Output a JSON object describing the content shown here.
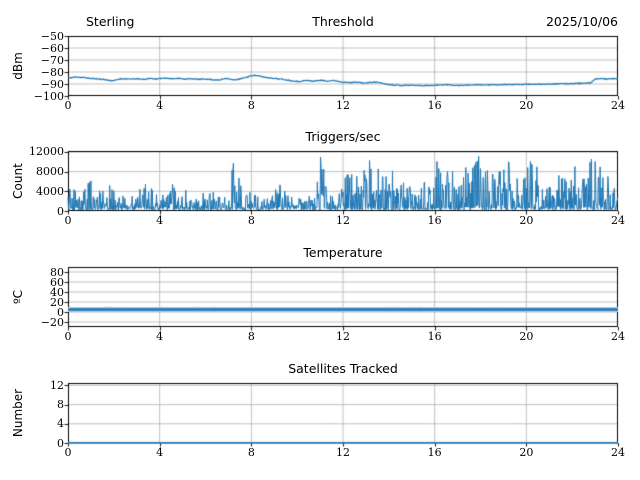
{
  "figure": {
    "colors": {
      "line": "#1f77b4",
      "band": "#a9c9e4",
      "grid": "#b0b0b0",
      "frame": "#000000",
      "background": "#ffffff",
      "text": "#000000"
    },
    "x_axis": {
      "min": 0,
      "max": 24,
      "tick_values": [
        0,
        4,
        8,
        12,
        16,
        20,
        24
      ],
      "tick_labels": [
        "0",
        "4",
        "8",
        "12",
        "16",
        "20",
        "24"
      ]
    }
  },
  "chart_data": [
    {
      "type": "line",
      "title": "Threshold",
      "title_left": "Sterling",
      "title_right": "2025/10/06",
      "ylabel": "dBm",
      "ylim": [
        -100,
        -50
      ],
      "ytick_values": [
        -50,
        -60,
        -70,
        -80,
        -90,
        -100
      ],
      "ytick_labels": [
        "−50",
        "−60",
        "−70",
        "−80",
        "−90",
        "−100"
      ],
      "x": [
        0,
        0.3,
        0.7,
        1.0,
        1.3,
        1.6,
        1.9,
        2.1,
        2.3,
        2.7,
        3.0,
        3.3,
        3.6,
        3.9,
        4.2,
        4.5,
        4.8,
        5.1,
        5.4,
        5.7,
        6.0,
        6.3,
        6.6,
        6.9,
        7.2,
        7.5,
        7.8,
        8.1,
        8.3,
        8.6,
        9.0,
        9.4,
        9.8,
        10.1,
        10.4,
        10.7,
        11.0,
        11.3,
        11.6,
        12.0,
        12.3,
        12.6,
        12.9,
        13.2,
        13.5,
        13.8,
        14.1,
        14.5,
        15.0,
        15.5,
        16.0,
        16.5,
        17.0,
        17.5,
        18.0,
        18.5,
        19.0,
        19.5,
        20.0,
        20.5,
        21.0,
        21.5,
        22.0,
        22.4,
        22.8,
        23.0,
        23.2,
        23.5,
        23.8,
        24
      ],
      "y": [
        -85.2,
        -84.2,
        -84.6,
        -85.4,
        -85.8,
        -86.3,
        -87.3,
        -86.8,
        -85.6,
        -85.9,
        -85.7,
        -86.1,
        -85.4,
        -85.9,
        -84.9,
        -85.6,
        -85.3,
        -85.9,
        -85.6,
        -86.2,
        -85.8,
        -86.4,
        -86.8,
        -85.1,
        -86.6,
        -85.9,
        -84.3,
        -82.6,
        -83.2,
        -84.4,
        -85.3,
        -86.2,
        -87.4,
        -87.9,
        -87.0,
        -87.6,
        -86.9,
        -87.5,
        -87.1,
        -88.4,
        -88.9,
        -88.3,
        -89.3,
        -88.7,
        -88.4,
        -89.8,
        -90.6,
        -91.2,
        -91.0,
        -91.3,
        -91.1,
        -90.6,
        -91.2,
        -90.9,
        -90.7,
        -90.8,
        -90.6,
        -90.4,
        -90.3,
        -90.2,
        -90.0,
        -89.8,
        -89.6,
        -89.4,
        -89.2,
        -86.0,
        -85.4,
        -85.9,
        -85.6,
        -85.7
      ],
      "noise": 0.35,
      "line_width": 1.2,
      "seed": 11
    },
    {
      "type": "spiky",
      "title": "Triggers/sec",
      "ylabel": "Count",
      "ylim": [
        0,
        12200
      ],
      "ytick_values": [
        12000,
        8000,
        4000,
        0
      ],
      "ytick_labels": [
        "12000",
        "8000",
        "4000",
        "0"
      ],
      "envelope_x": [
        0,
        0.3,
        0.6,
        1.0,
        1.3,
        1.6,
        2.0,
        2.3,
        2.6,
        3.0,
        3.3,
        3.6,
        3.9,
        4.2,
        4.5,
        4.8,
        5.1,
        5.4,
        5.7,
        6.0,
        6.3,
        6.6,
        6.9,
        7.2,
        7.5,
        7.8,
        8.1,
        8.4,
        8.7,
        9.0,
        9.3,
        9.6,
        9.9,
        10.2,
        10.5,
        10.8,
        11.05,
        11.3,
        11.6,
        11.9,
        12.15,
        12.45,
        12.7,
        13.0,
        13.2,
        13.45,
        13.7,
        14.0,
        14.3,
        14.6,
        14.9,
        15.2,
        15.5,
        15.8,
        16.1,
        16.4,
        16.7,
        17.0,
        17.3,
        17.6,
        17.9,
        18.2,
        18.5,
        18.8,
        19.1,
        19.4,
        19.7,
        20.0,
        20.3,
        20.6,
        20.9,
        21.2,
        21.5,
        21.8,
        22.1,
        22.4,
        22.7,
        22.95,
        23.2,
        23.5,
        23.8,
        24
      ],
      "envelope_y": [
        5800,
        4200,
        3500,
        7300,
        4500,
        6800,
        4200,
        3600,
        3300,
        4800,
        5400,
        7000,
        4300,
        3800,
        6300,
        4100,
        4800,
        3600,
        3200,
        4400,
        4100,
        3400,
        3900,
        9900,
        8200,
        4600,
        3400,
        2600,
        2700,
        4500,
        5900,
        3400,
        2900,
        3100,
        3300,
        3000,
        12400,
        3800,
        3300,
        4400,
        8400,
        8700,
        6600,
        9700,
        11600,
        11000,
        7400,
        8600,
        9900,
        8100,
        8400,
        6800,
        6300,
        7200,
        10400,
        8800,
        7600,
        11100,
        9300,
        9600,
        11300,
        8400,
        10100,
        8600,
        12300,
        9100,
        8200,
        11600,
        12300,
        7100,
        5200,
        6200,
        7600,
        8900,
        10600,
        7300,
        9200,
        12300,
        10100,
        8300,
        6200,
        5100
      ],
      "base": 250,
      "seed": 5
    },
    {
      "type": "band-line",
      "title": "Temperature",
      "ylabel": "ºC",
      "ylim": [
        -30,
        90
      ],
      "ytick_values": [
        80,
        60,
        40,
        20,
        0,
        -20
      ],
      "ytick_labels": [
        "80",
        "60",
        "40",
        "20",
        "0",
        "−20"
      ],
      "line_value": 5,
      "band_halfwidth": 5,
      "speckle_segments": [
        [
          1.1,
          3.3
        ],
        [
          5.3,
          6.8
        ],
        [
          13.7,
          18.8
        ]
      ],
      "speckle_y": [
        8,
        11
      ],
      "seed": 9
    },
    {
      "type": "line",
      "title": "Satellites Tracked",
      "ylabel": "Number",
      "ylim": [
        0,
        12.5
      ],
      "ytick_values": [
        12,
        8,
        4,
        0
      ],
      "ytick_labels": [
        "12",
        "8",
        "4",
        "0"
      ],
      "x": [
        0,
        24
      ],
      "y": [
        0,
        0
      ],
      "noise": 0,
      "line_width": 1.7,
      "seed": 1
    }
  ]
}
